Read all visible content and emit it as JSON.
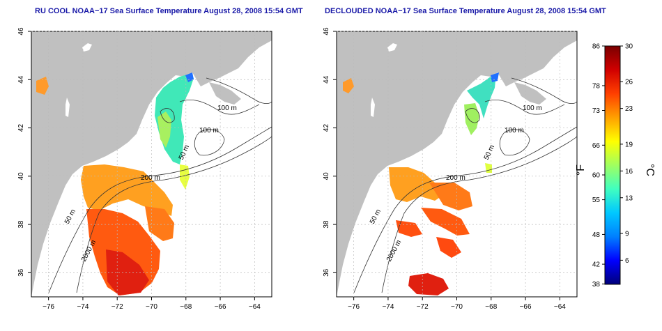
{
  "panels": [
    {
      "title": "RU COOL NOAA−17 Sea Surface Temperature August 28, 2008 15:54 GMT",
      "contour_labels": [
        "100 m",
        "100 m",
        "50 m",
        "200 m",
        "50 m",
        "2000 m"
      ]
    },
    {
      "title": "DECLOUDED NOAA−17 Sea Surface Temperature August 28, 2008 15:54 GMT",
      "contour_labels": [
        "100 m",
        "100 m",
        "50 m",
        "200 m",
        "50 m",
        "2000 m"
      ]
    }
  ],
  "axes": {
    "x_ticks": [
      "−76",
      "−74",
      "−72",
      "−70",
      "−68",
      "−66",
      "−64"
    ],
    "y_ticks": [
      "36",
      "38",
      "40",
      "42",
      "44",
      "46"
    ],
    "lon_range": [
      -77,
      -63
    ],
    "lat_range": [
      35,
      46
    ]
  },
  "colorbar": {
    "unit_left": "°F",
    "unit_right": "°C",
    "fahrenheit_ticks": [
      "86",
      "78",
      "73",
      "66",
      "60",
      "55",
      "48",
      "42",
      "38"
    ],
    "celsius_ticks": [
      "30",
      "26",
      "23",
      "19",
      "16",
      "13",
      "9",
      "6"
    ],
    "celsius_range": [
      3.3,
      30
    ],
    "colors": [
      "#00007a",
      "#0000ff",
      "#0080ff",
      "#00c8ff",
      "#40ffc0",
      "#a0ff60",
      "#ffff00",
      "#ffa000",
      "#ff4000",
      "#d00000",
      "#7a0000"
    ]
  },
  "colors": {
    "land": "#c0c0c0",
    "ocean": "#ffffff",
    "title": "#1a1aa8",
    "grid": "#bbbbbb"
  }
}
